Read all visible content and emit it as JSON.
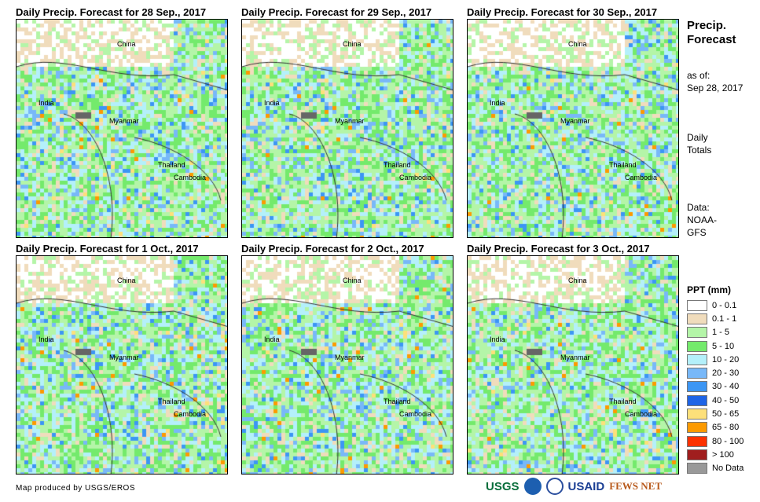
{
  "panels": [
    {
      "title": "Daily Precip. Forecast for 28 Sep., 2017"
    },
    {
      "title": "Daily Precip. Forecast for 29 Sep., 2017"
    },
    {
      "title": "Daily Precip. Forecast for 30 Sep., 2017"
    },
    {
      "title": "Daily Precip. Forecast for 1 Oct., 2017"
    },
    {
      "title": "Daily Precip. Forecast for 2 Oct., 2017"
    },
    {
      "title": "Daily Precip. Forecast for 3 Oct., 2017"
    }
  ],
  "map_labels": {
    "china": "China",
    "india": "India",
    "myanmar": "Myanmar",
    "thailand": "Thailand",
    "cambodia": "Cambodia"
  },
  "side": {
    "title": "Precip. Forecast",
    "asof_label": "as of:",
    "asof_date": "Sep 28, 2017",
    "totals": "Daily Totals",
    "data_label": "Data:",
    "data_source": "NOAA-GFS"
  },
  "legend": {
    "title": "PPT (mm)",
    "items": [
      {
        "label": "0 - 0.1",
        "color": "#ffffff"
      },
      {
        "label": "0.1 - 1",
        "color": "#f0dcbc"
      },
      {
        "label": "1 - 5",
        "color": "#b4f5a8"
      },
      {
        "label": "5 - 10",
        "color": "#74ea6c"
      },
      {
        "label": "10 - 20",
        "color": "#b4f0fa"
      },
      {
        "label": "20 - 30",
        "color": "#78b8f8"
      },
      {
        "label": "30 - 40",
        "color": "#3c96f4"
      },
      {
        "label": "40 - 50",
        "color": "#1e64e6"
      },
      {
        "label": "50 - 65",
        "color": "#fde07a"
      },
      {
        "label": "65 - 80",
        "color": "#fc9a00"
      },
      {
        "label": "80 - 100",
        "color": "#fc3200"
      },
      {
        "label": "> 100",
        "color": "#a01e1e"
      },
      {
        "label": "No Data",
        "color": "#999999"
      }
    ]
  },
  "footer": {
    "credit": "Map produced by USGS/EROS",
    "logos": [
      "USGS",
      "NOAA",
      "USAID",
      "FEWS NET"
    ]
  }
}
